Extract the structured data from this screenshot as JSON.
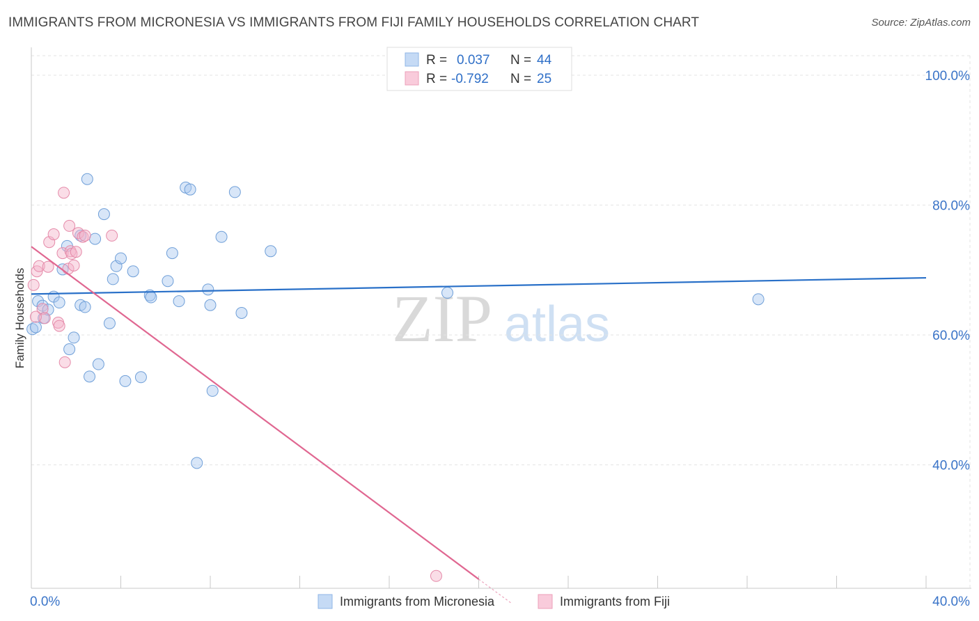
{
  "title": "IMMIGRANTS FROM MICRONESIA VS IMMIGRANTS FROM FIJI FAMILY HOUSEHOLDS CORRELATION CHART",
  "source": "Source: ZipAtlas.com",
  "watermark": {
    "zip": "ZIP",
    "atlas": "atlas"
  },
  "legend_box": {
    "rows": [
      {
        "r_label": "R =",
        "r_value": "0.037",
        "n_label": "N =",
        "n_value": "44",
        "color": "#a9c8f0"
      },
      {
        "r_label": "R =",
        "r_value": "-0.792",
        "n_label": "N =",
        "n_value": "25",
        "color": "#f4b3c9"
      }
    ]
  },
  "bottom_legend": [
    {
      "label": "Immigrants from Micronesia",
      "color": "#a9c8f0"
    },
    {
      "label": "Immigrants from Fiji",
      "color": "#f4b3c9"
    }
  ],
  "chart_data": {
    "type": "scatter",
    "title": "IMMIGRANTS FROM MICRONESIA VS IMMIGRANTS FROM FIJI FAMILY HOUSEHOLDS CORRELATION CHART",
    "xlabel": "",
    "ylabel": "Family Households",
    "xlim": [
      0,
      40
    ],
    "ylim": [
      21,
      103
    ],
    "x_tick_labels": [
      "0.0%",
      "40.0%"
    ],
    "y_ticks": [
      40,
      60,
      80,
      100
    ],
    "y_tick_labels": [
      "40.0%",
      "60.0%",
      "80.0%",
      "100.0%"
    ],
    "grid": true,
    "legend_position": "bottom",
    "series": [
      {
        "name": "Immigrants from Micronesia",
        "color": "#a9c8f0",
        "stroke": "#6f9fd8",
        "trend_color": "#2970c8",
        "r": 0.037,
        "n": 44,
        "trend": {
          "x": [
            0,
            40
          ],
          "y": [
            66.3,
            68.8
          ]
        },
        "points": [
          {
            "x": 0.05,
            "y": 60.9
          },
          {
            "x": 0.3,
            "y": 65.2
          },
          {
            "x": 0.5,
            "y": 64.5
          },
          {
            "x": 0.55,
            "y": 62.6
          },
          {
            "x": 0.75,
            "y": 63.9
          },
          {
            "x": 1.0,
            "y": 65.9
          },
          {
            "x": 1.25,
            "y": 65.0
          },
          {
            "x": 1.4,
            "y": 70.1
          },
          {
            "x": 1.6,
            "y": 73.7
          },
          {
            "x": 1.7,
            "y": 57.8
          },
          {
            "x": 1.9,
            "y": 59.6
          },
          {
            "x": 2.2,
            "y": 75.3
          },
          {
            "x": 2.2,
            "y": 64.6
          },
          {
            "x": 2.4,
            "y": 64.3
          },
          {
            "x": 2.5,
            "y": 84.0
          },
          {
            "x": 2.6,
            "y": 53.6
          },
          {
            "x": 2.85,
            "y": 74.8
          },
          {
            "x": 3.0,
            "y": 55.5
          },
          {
            "x": 3.25,
            "y": 78.6
          },
          {
            "x": 3.5,
            "y": 61.8
          },
          {
            "x": 3.65,
            "y": 68.6
          },
          {
            "x": 3.8,
            "y": 70.6
          },
          {
            "x": 4.0,
            "y": 71.8
          },
          {
            "x": 4.2,
            "y": 52.9
          },
          {
            "x": 4.55,
            "y": 69.8
          },
          {
            "x": 4.9,
            "y": 53.5
          },
          {
            "x": 5.3,
            "y": 66.1
          },
          {
            "x": 5.35,
            "y": 65.8
          },
          {
            "x": 6.1,
            "y": 68.3
          },
          {
            "x": 6.3,
            "y": 72.6
          },
          {
            "x": 6.6,
            "y": 65.2
          },
          {
            "x": 6.9,
            "y": 82.7
          },
          {
            "x": 7.1,
            "y": 82.4
          },
          {
            "x": 7.4,
            "y": 40.3
          },
          {
            "x": 7.9,
            "y": 67.0
          },
          {
            "x": 8.0,
            "y": 64.6
          },
          {
            "x": 8.1,
            "y": 51.4
          },
          {
            "x": 8.5,
            "y": 75.1
          },
          {
            "x": 9.1,
            "y": 82.0
          },
          {
            "x": 9.4,
            "y": 63.4
          },
          {
            "x": 10.7,
            "y": 72.9
          },
          {
            "x": 18.6,
            "y": 66.5
          },
          {
            "x": 32.5,
            "y": 65.5
          },
          {
            "x": 0.2,
            "y": 61.2
          }
        ]
      },
      {
        "name": "Immigrants from Fiji",
        "color": "#f4b3c9",
        "stroke": "#e58aa9",
        "trend_color": "#e06791",
        "r": -0.792,
        "n": 25,
        "trend": {
          "x": [
            0,
            20
          ],
          "y": [
            73.6,
            22.4
          ]
        },
        "trend_dashed": {
          "x": [
            20,
            21.5
          ],
          "y": [
            22.4,
            18.6
          ]
        },
        "points": [
          {
            "x": 0.1,
            "y": 67.7
          },
          {
            "x": 0.25,
            "y": 69.8
          },
          {
            "x": 0.35,
            "y": 70.6
          },
          {
            "x": 0.5,
            "y": 64.0
          },
          {
            "x": 0.6,
            "y": 62.6
          },
          {
            "x": 0.75,
            "y": 70.5
          },
          {
            "x": 0.8,
            "y": 74.3
          },
          {
            "x": 1.0,
            "y": 75.5
          },
          {
            "x": 1.2,
            "y": 61.9
          },
          {
            "x": 1.25,
            "y": 61.4
          },
          {
            "x": 1.4,
            "y": 72.6
          },
          {
            "x": 1.45,
            "y": 81.9
          },
          {
            "x": 1.5,
            "y": 55.8
          },
          {
            "x": 1.65,
            "y": 70.2
          },
          {
            "x": 1.7,
            "y": 76.8
          },
          {
            "x": 1.75,
            "y": 72.9
          },
          {
            "x": 1.8,
            "y": 72.5
          },
          {
            "x": 1.9,
            "y": 70.7
          },
          {
            "x": 2.0,
            "y": 72.8
          },
          {
            "x": 2.1,
            "y": 75.7
          },
          {
            "x": 2.3,
            "y": 75.1
          },
          {
            "x": 2.4,
            "y": 75.3
          },
          {
            "x": 3.6,
            "y": 75.3
          },
          {
            "x": 0.2,
            "y": 62.8
          },
          {
            "x": 18.1,
            "y": 22.9
          }
        ]
      }
    ]
  }
}
